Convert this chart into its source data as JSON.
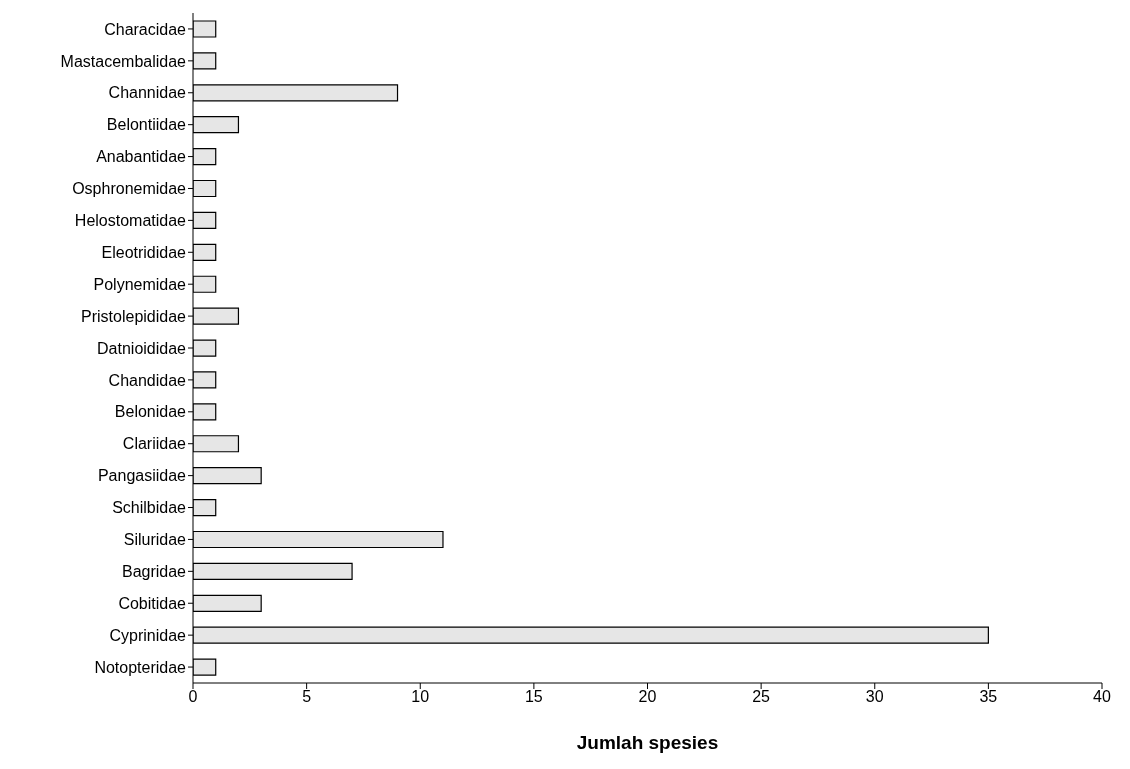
{
  "chart_data": {
    "type": "bar",
    "orientation": "horizontal",
    "xlabel": "Jumlah spesies",
    "categories": [
      "Characidae",
      "Mastacembalidae",
      "Channidae",
      "Belontiidae",
      "Anabantidae",
      "Osphronemidae",
      "Helostomatidae",
      "Eleotrididae",
      "Polynemidae",
      "Pristolepididae",
      "Datnioididae",
      "Chandidae",
      "Belonidae",
      "Clariidae",
      "Pangasiidae",
      "Schilbidae",
      "Siluridae",
      "Bagridae",
      "Cobitidae",
      "Cyprinidae",
      "Notopteridae"
    ],
    "values": [
      1,
      1,
      9,
      2,
      1,
      1,
      1,
      1,
      1,
      2,
      1,
      1,
      1,
      2,
      3,
      1,
      11,
      7,
      3,
      35,
      1
    ],
    "color": "#e6e6e6",
    "xlim": [
      0,
      40
    ],
    "xticks": [
      0,
      5,
      10,
      15,
      20,
      25,
      30,
      35,
      40
    ],
    "grid": false,
    "legend": false
  }
}
